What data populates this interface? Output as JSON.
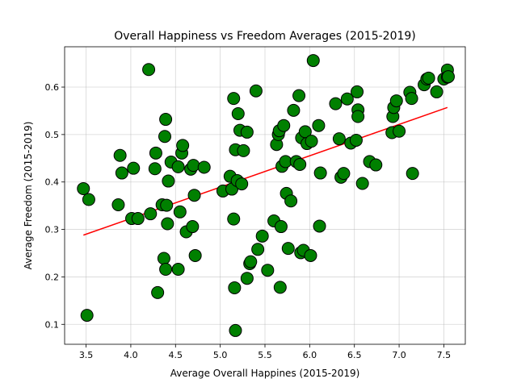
{
  "chart_data": {
    "type": "scatter",
    "title": "Overall Happiness vs Freedom Averages (2015-2019)",
    "xlabel": "Average Overall Happines (2015-2019)",
    "ylabel": "Average Freedom (2015-2019)",
    "xlim": [
      3.26,
      7.74
    ],
    "ylim": [
      0.058,
      0.685
    ],
    "xticks": [
      "3.5",
      "4.0",
      "4.5",
      "5.0",
      "5.5",
      "6.0",
      "6.5",
      "7.0",
      "7.5"
    ],
    "yticks": [
      "0.1",
      "0.2",
      "0.3",
      "0.4",
      "0.5",
      "0.6"
    ],
    "grid": true,
    "point_color": "#008000",
    "trend_color": "#ff0000",
    "trend": {
      "x": [
        3.47,
        7.54
      ],
      "y": [
        0.288,
        0.557
      ]
    },
    "points": [
      [
        3.47,
        0.386
      ],
      [
        3.53,
        0.363
      ],
      [
        3.51,
        0.119
      ],
      [
        3.86,
        0.352
      ],
      [
        3.88,
        0.456
      ],
      [
        3.9,
        0.419
      ],
      [
        4.01,
        0.323
      ],
      [
        4.03,
        0.429
      ],
      [
        4.08,
        0.323
      ],
      [
        4.2,
        0.637
      ],
      [
        4.22,
        0.333
      ],
      [
        4.27,
        0.428
      ],
      [
        4.28,
        0.461
      ],
      [
        4.3,
        0.167
      ],
      [
        4.35,
        0.352
      ],
      [
        4.37,
        0.239
      ],
      [
        4.38,
        0.496
      ],
      [
        4.39,
        0.532
      ],
      [
        4.39,
        0.216
      ],
      [
        4.4,
        0.351
      ],
      [
        4.41,
        0.312
      ],
      [
        4.42,
        0.402
      ],
      [
        4.45,
        0.442
      ],
      [
        4.53,
        0.432
      ],
      [
        4.53,
        0.216
      ],
      [
        4.55,
        0.337
      ],
      [
        4.57,
        0.461
      ],
      [
        4.58,
        0.477
      ],
      [
        4.62,
        0.295
      ],
      [
        4.67,
        0.427
      ],
      [
        4.69,
        0.306
      ],
      [
        4.7,
        0.435
      ],
      [
        4.71,
        0.372
      ],
      [
        4.72,
        0.245
      ],
      [
        4.82,
        0.431
      ],
      [
        5.03,
        0.381
      ],
      [
        5.11,
        0.412
      ],
      [
        5.13,
        0.385
      ],
      [
        5.15,
        0.322
      ],
      [
        5.15,
        0.576
      ],
      [
        5.17,
        0.468
      ],
      [
        5.19,
        0.403
      ],
      [
        5.2,
        0.544
      ],
      [
        5.22,
        0.509
      ],
      [
        5.24,
        0.396
      ],
      [
        5.26,
        0.466
      ],
      [
        5.16,
        0.177
      ],
      [
        5.17,
        0.087
      ],
      [
        5.3,
        0.505
      ],
      [
        5.3,
        0.197
      ],
      [
        5.33,
        0.228
      ],
      [
        5.34,
        0.232
      ],
      [
        5.4,
        0.592
      ],
      [
        5.42,
        0.258
      ],
      [
        5.47,
        0.286
      ],
      [
        5.53,
        0.214
      ],
      [
        5.6,
        0.318
      ],
      [
        5.63,
        0.479
      ],
      [
        5.65,
        0.5
      ],
      [
        5.66,
        0.508
      ],
      [
        5.67,
        0.178
      ],
      [
        5.68,
        0.306
      ],
      [
        5.69,
        0.433
      ],
      [
        5.71,
        0.519
      ],
      [
        5.73,
        0.443
      ],
      [
        5.74,
        0.376
      ],
      [
        5.76,
        0.26
      ],
      [
        5.79,
        0.36
      ],
      [
        5.82,
        0.551
      ],
      [
        5.85,
        0.443
      ],
      [
        5.88,
        0.582
      ],
      [
        5.89,
        0.437
      ],
      [
        5.9,
        0.251
      ],
      [
        5.91,
        0.493
      ],
      [
        5.93,
        0.256
      ],
      [
        5.95,
        0.506
      ],
      [
        5.97,
        0.481
      ],
      [
        6.01,
        0.245
      ],
      [
        6.02,
        0.486
      ],
      [
        6.04,
        0.656
      ],
      [
        6.1,
        0.519
      ],
      [
        6.11,
        0.307
      ],
      [
        6.12,
        0.419
      ],
      [
        6.29,
        0.565
      ],
      [
        6.33,
        0.491
      ],
      [
        6.35,
        0.41
      ],
      [
        6.38,
        0.418
      ],
      [
        6.42,
        0.575
      ],
      [
        6.46,
        0.482
      ],
      [
        6.52,
        0.488
      ],
      [
        6.53,
        0.59
      ],
      [
        6.54,
        0.552
      ],
      [
        6.54,
        0.538
      ],
      [
        6.59,
        0.397
      ],
      [
        6.67,
        0.443
      ],
      [
        6.74,
        0.436
      ],
      [
        6.92,
        0.504
      ],
      [
        6.93,
        0.538
      ],
      [
        6.94,
        0.557
      ],
      [
        6.97,
        0.571
      ],
      [
        7.0,
        0.507
      ],
      [
        7.12,
        0.589
      ],
      [
        7.14,
        0.576
      ],
      [
        7.15,
        0.418
      ],
      [
        7.28,
        0.605
      ],
      [
        7.31,
        0.617
      ],
      [
        7.33,
        0.619
      ],
      [
        7.42,
        0.59
      ],
      [
        7.5,
        0.617
      ],
      [
        7.54,
        0.636
      ],
      [
        7.54,
        0.621
      ],
      [
        7.55,
        0.622
      ]
    ]
  }
}
